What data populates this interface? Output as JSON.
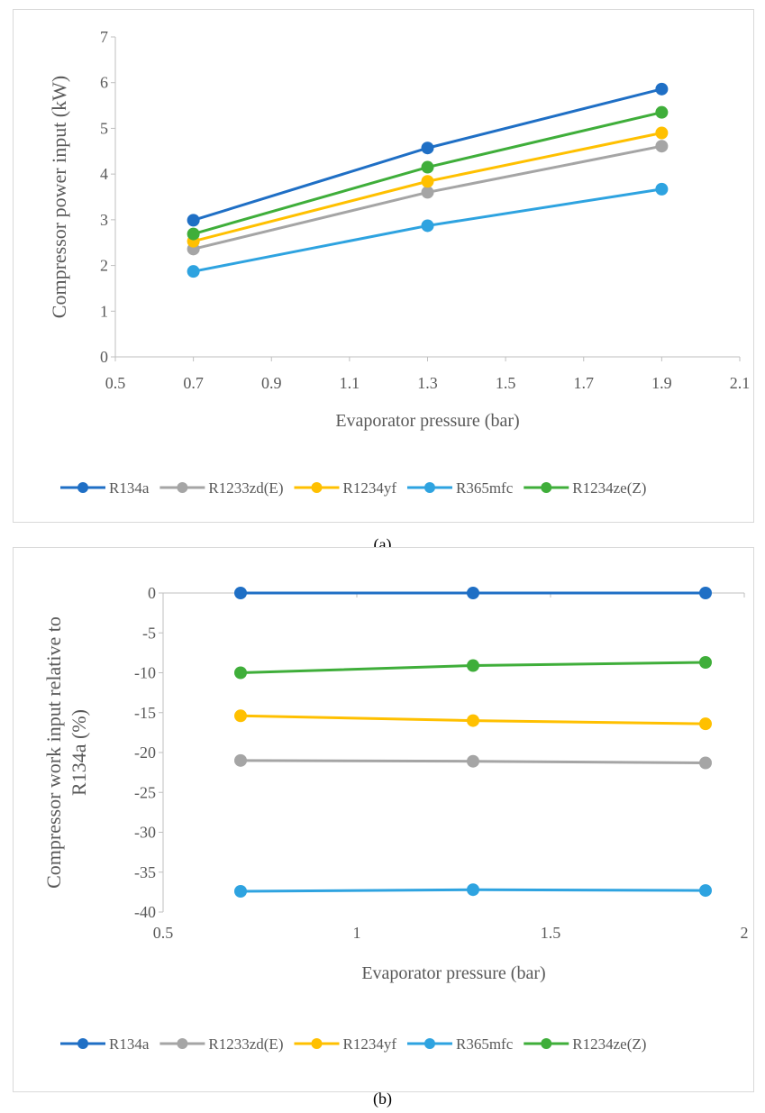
{
  "chart_data": [
    {
      "type": "line",
      "caption": "(a)",
      "xlabel": "Evaporator pressure (bar)",
      "ylabel": "Compressor power input (kW)",
      "xlim": [
        0.5,
        2.1
      ],
      "ylim": [
        0,
        7
      ],
      "xticks": [
        "0.5",
        "0.7",
        "0.9",
        "1.1",
        "1.3",
        "1.5",
        "1.7",
        "1.9",
        "2.1"
      ],
      "yticks": [
        "0",
        "1",
        "2",
        "3",
        "4",
        "5",
        "6",
        "7"
      ],
      "grid": false,
      "legend_position": "bottom",
      "x": [
        0.7,
        1.3,
        1.9
      ],
      "series": [
        {
          "name": "R134a",
          "color": "#1f6fc5",
          "values": [
            2.99,
            4.57,
            5.86
          ]
        },
        {
          "name": "R1233zd(E)",
          "color": "#a5a5a5",
          "values": [
            2.36,
            3.6,
            4.61
          ]
        },
        {
          "name": "R1234yf",
          "color": "#ffc000",
          "values": [
            2.53,
            3.84,
            4.9
          ]
        },
        {
          "name": "R365mfc",
          "color": "#2ea3e0",
          "values": [
            1.87,
            2.87,
            3.67
          ]
        },
        {
          "name": "R1234ze(Z)",
          "color": "#3fae3a",
          "values": [
            2.69,
            4.15,
            5.35
          ]
        }
      ]
    },
    {
      "type": "line",
      "caption": "(b)",
      "xlabel": "Evaporator pressure (bar)",
      "ylabel": "Compressor work input relative to R134a (%)",
      "xlim": [
        0.5,
        2
      ],
      "ylim": [
        -40,
        0
      ],
      "xticks": [
        "0.5",
        "1",
        "1.5",
        "2"
      ],
      "yticks": [
        "0",
        "-5",
        "-10",
        "-15",
        "-20",
        "-25",
        "-30",
        "-35",
        "-40"
      ],
      "grid": false,
      "legend_position": "bottom",
      "x": [
        0.7,
        1.3,
        1.9
      ],
      "series": [
        {
          "name": "R134a",
          "color": "#1f6fc5",
          "values": [
            0,
            0,
            0
          ]
        },
        {
          "name": "R1233zd(E)",
          "color": "#a5a5a5",
          "values": [
            -21.0,
            -21.1,
            -21.3
          ]
        },
        {
          "name": "R1234yf",
          "color": "#ffc000",
          "values": [
            -15.4,
            -16.0,
            -16.4
          ]
        },
        {
          "name": "R365mfc",
          "color": "#2ea3e0",
          "values": [
            -37.4,
            -37.2,
            -37.3
          ]
        },
        {
          "name": "R1234ze(Z)",
          "color": "#3fae3a",
          "values": [
            -10.0,
            -9.1,
            -8.7
          ]
        }
      ]
    }
  ]
}
